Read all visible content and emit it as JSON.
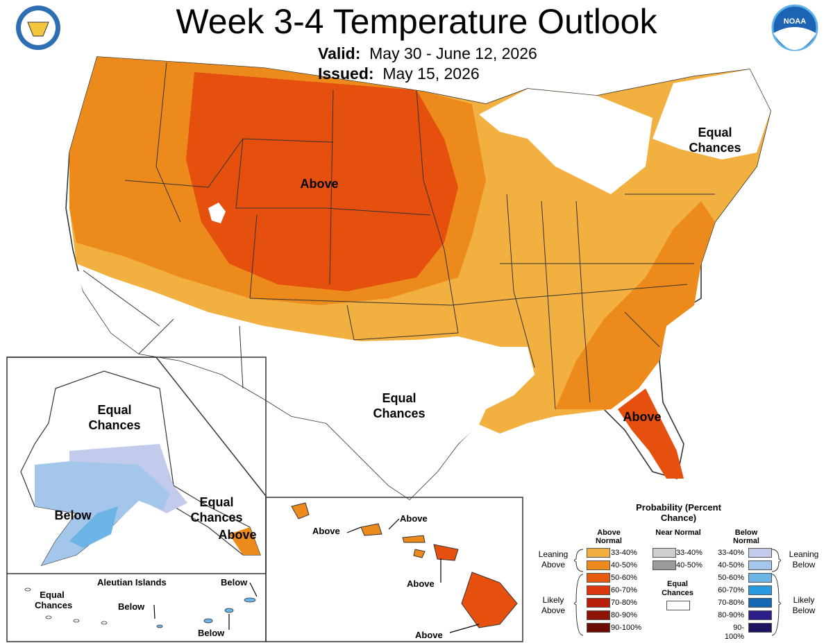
{
  "title": "Week 3-4 Temperature Outlook",
  "valid_label": "Valid:",
  "valid_value": "May 30 - June 12, 2026",
  "issued_label": "Issued:",
  "issued_value": "May 15, 2026",
  "logos": {
    "left": "doc-seal-icon",
    "right": "noaa-logo-icon"
  },
  "map_labels": {
    "conus_above": "Above",
    "northeast_ec": "Equal Chances",
    "texas_ec": "Equal Chances",
    "florida_above": "Above"
  },
  "alaska_labels": {
    "equal_chances_north": "Equal Chances",
    "below": "Below",
    "equal_chances_se": "Equal Chances",
    "above_se": "Above"
  },
  "aleutian": {
    "title": "Aleutian Islands",
    "equal_chances": "Equal Chances",
    "below_1": "Below",
    "below_2": "Below",
    "below_3": "Below"
  },
  "hawaii_labels": {
    "above_1": "Above",
    "above_2": "Above",
    "above_3": "Above",
    "above_4": "Above"
  },
  "legend": {
    "title": "Probability (Percent Chance)",
    "above_header": "Above Normal",
    "near_header": "Near Normal",
    "below_header": "Below Normal",
    "leaning_above": "Leaning Above",
    "likely_above": "Likely Above",
    "leaning_below": "Leaning Below",
    "likely_below": "Likely Below",
    "equal_chances": "Equal Chances",
    "above_bins": [
      {
        "label": "33-40%",
        "color": "#f2b040"
      },
      {
        "label": "40-50%",
        "color": "#ed8a1c"
      },
      {
        "label": "50-60%",
        "color": "#e85a0e"
      },
      {
        "label": "60-70%",
        "color": "#d9360e"
      },
      {
        "label": "70-80%",
        "color": "#b81e0a"
      },
      {
        "label": "80-90%",
        "color": "#8e1306"
      },
      {
        "label": "90-100%",
        "color": "#6b0d04"
      }
    ],
    "near_bins": [
      {
        "label": "33-40%",
        "color": "#cfcfcf"
      },
      {
        "label": "40-50%",
        "color": "#9a9a9a"
      }
    ],
    "below_bins": [
      {
        "label": "33-40%",
        "color": "#c3cbec"
      },
      {
        "label": "40-50%",
        "color": "#a4c6ea"
      },
      {
        "label": "50-60%",
        "color": "#6cb4e6"
      },
      {
        "label": "60-70%",
        "color": "#2a9ae0"
      },
      {
        "label": "70-80%",
        "color": "#1566b4"
      },
      {
        "label": "80-90%",
        "color": "#2a1f86"
      },
      {
        "label": "90-100%",
        "color": "#1c1460"
      }
    ]
  }
}
